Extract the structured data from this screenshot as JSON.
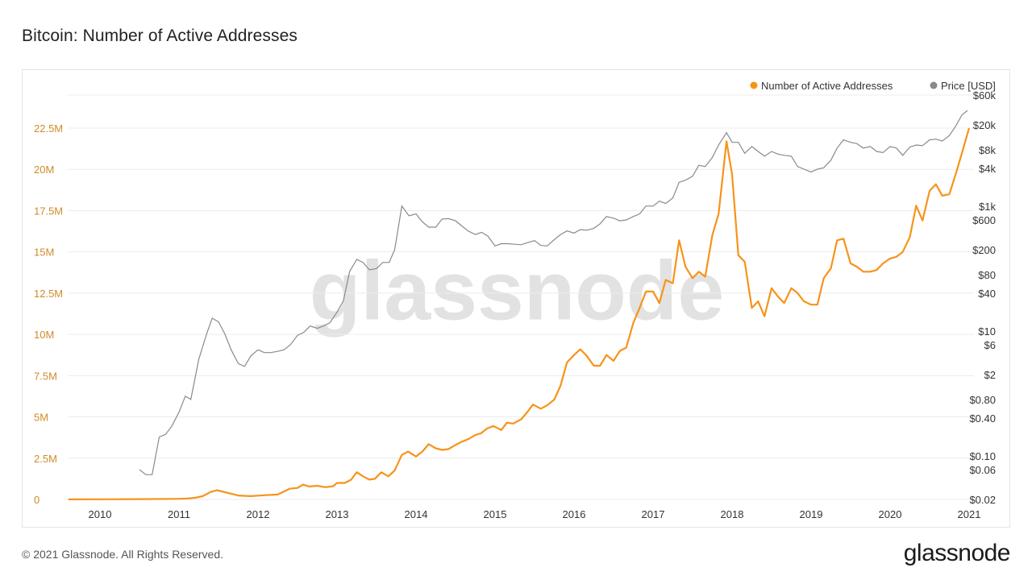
{
  "page": {
    "title": "Bitcoin: Number of Active Addresses",
    "footer": "© 2021 Glassnode. All Rights Reserved.",
    "logo": "glassnode",
    "watermark": "glassnode"
  },
  "colors": {
    "addresses": "#f7931a",
    "price": "#8a8a8a",
    "left_axis_text": "#d08b2a",
    "axis_text": "#333333",
    "grid": "#ececec",
    "watermark": "#e2e2e2"
  },
  "chart_data": {
    "type": "line",
    "title": "Bitcoin: Number of Active Addresses",
    "legend_position": "top-right",
    "x_ticks": [
      "2010",
      "2011",
      "2012",
      "2013",
      "2014",
      "2015",
      "2016",
      "2017",
      "2018",
      "2019",
      "2020",
      "2021"
    ],
    "xlim": [
      2009.6,
      2021.0
    ],
    "left_axis": {
      "ylim": [
        0,
        25000000
      ],
      "ticks": [
        {
          "value": 0,
          "label": "0"
        },
        {
          "value": 2500000,
          "label": "2.5M"
        },
        {
          "value": 5000000,
          "label": "5M"
        },
        {
          "value": 7500000,
          "label": "7.5M"
        },
        {
          "value": 10000000,
          "label": "10M"
        },
        {
          "value": 12500000,
          "label": "12.5M"
        },
        {
          "value": 15000000,
          "label": "15M"
        },
        {
          "value": 17500000,
          "label": "17.5M"
        },
        {
          "value": 20000000,
          "label": "20M"
        },
        {
          "value": 22500000,
          "label": "22.5M"
        }
      ]
    },
    "right_axis": {
      "scale": "log",
      "ylim": [
        0.02,
        60000
      ],
      "ticks": [
        {
          "value": 60000,
          "label": "$60k"
        },
        {
          "value": 20000,
          "label": "$20k"
        },
        {
          "value": 8000,
          "label": "$8k"
        },
        {
          "value": 4000,
          "label": "$4k"
        },
        {
          "value": 1000,
          "label": "$1k"
        },
        {
          "value": 600,
          "label": "$600"
        },
        {
          "value": 200,
          "label": "$200"
        },
        {
          "value": 80,
          "label": "$80"
        },
        {
          "value": 40,
          "label": "$40"
        },
        {
          "value": 10,
          "label": "$10"
        },
        {
          "value": 6,
          "label": "$6"
        },
        {
          "value": 2,
          "label": "$2"
        },
        {
          "value": 0.8,
          "label": "$0.80"
        },
        {
          "value": 0.4,
          "label": "$0.40"
        },
        {
          "value": 0.1,
          "label": "$0.10"
        },
        {
          "value": 0.06,
          "label": "$0.06"
        },
        {
          "value": 0.02,
          "label": "$0.02"
        }
      ]
    },
    "series": [
      {
        "name": "Number of Active Addresses",
        "axis": "left",
        "points": [
          [
            2009.6,
            5000
          ],
          [
            2010.0,
            10000
          ],
          [
            2010.5,
            20000
          ],
          [
            2010.9,
            35000
          ],
          [
            2011.0,
            40000
          ],
          [
            2011.1,
            60000
          ],
          [
            2011.2,
            100000
          ],
          [
            2011.3,
            200000
          ],
          [
            2011.4,
            450000
          ],
          [
            2011.48,
            560000
          ],
          [
            2011.6,
            420000
          ],
          [
            2011.75,
            240000
          ],
          [
            2011.9,
            200000
          ],
          [
            2012.0,
            230000
          ],
          [
            2012.1,
            260000
          ],
          [
            2012.25,
            300000
          ],
          [
            2012.4,
            650000
          ],
          [
            2012.5,
            700000
          ],
          [
            2012.57,
            900000
          ],
          [
            2012.65,
            780000
          ],
          [
            2012.75,
            830000
          ],
          [
            2012.85,
            740000
          ],
          [
            2012.95,
            800000
          ],
          [
            2013.0,
            1000000
          ],
          [
            2013.1,
            1000000
          ],
          [
            2013.18,
            1200000
          ],
          [
            2013.25,
            1650000
          ],
          [
            2013.33,
            1400000
          ],
          [
            2013.41,
            1200000
          ],
          [
            2013.48,
            1250000
          ],
          [
            2013.56,
            1650000
          ],
          [
            2013.65,
            1400000
          ],
          [
            2013.73,
            1750000
          ],
          [
            2013.82,
            2700000
          ],
          [
            2013.9,
            2900000
          ],
          [
            2014.0,
            2600000
          ],
          [
            2014.08,
            2900000
          ],
          [
            2014.16,
            3350000
          ],
          [
            2014.25,
            3100000
          ],
          [
            2014.33,
            3000000
          ],
          [
            2014.41,
            3050000
          ],
          [
            2014.5,
            3300000
          ],
          [
            2014.58,
            3500000
          ],
          [
            2014.66,
            3650000
          ],
          [
            2014.75,
            3900000
          ],
          [
            2014.82,
            4000000
          ],
          [
            2014.9,
            4300000
          ],
          [
            2014.98,
            4450000
          ],
          [
            2015.08,
            4200000
          ],
          [
            2015.15,
            4650000
          ],
          [
            2015.23,
            4600000
          ],
          [
            2015.33,
            4850000
          ],
          [
            2015.41,
            5300000
          ],
          [
            2015.48,
            5750000
          ],
          [
            2015.58,
            5500000
          ],
          [
            2015.66,
            5700000
          ],
          [
            2015.75,
            6050000
          ],
          [
            2015.83,
            6900000
          ],
          [
            2015.91,
            8300000
          ],
          [
            2016.0,
            8750000
          ],
          [
            2016.08,
            9100000
          ],
          [
            2016.16,
            8700000
          ],
          [
            2016.25,
            8100000
          ],
          [
            2016.33,
            8100000
          ],
          [
            2016.41,
            8750000
          ],
          [
            2016.5,
            8400000
          ],
          [
            2016.58,
            9000000
          ],
          [
            2016.66,
            9200000
          ],
          [
            2016.75,
            10700000
          ],
          [
            2016.83,
            11600000
          ],
          [
            2016.91,
            12600000
          ],
          [
            2017.0,
            12600000
          ],
          [
            2017.08,
            11900000
          ],
          [
            2017.16,
            13300000
          ],
          [
            2017.25,
            13100000
          ],
          [
            2017.33,
            15700000
          ],
          [
            2017.41,
            14100000
          ],
          [
            2017.5,
            13400000
          ],
          [
            2017.58,
            13800000
          ],
          [
            2017.66,
            13500000
          ],
          [
            2017.75,
            16000000
          ],
          [
            2017.83,
            17300000
          ],
          [
            2017.93,
            21700000
          ],
          [
            2018.0,
            19700000
          ],
          [
            2018.08,
            14800000
          ],
          [
            2018.16,
            14400000
          ],
          [
            2018.25,
            11600000
          ],
          [
            2018.33,
            12000000
          ],
          [
            2018.41,
            11100000
          ],
          [
            2018.5,
            12800000
          ],
          [
            2018.58,
            12300000
          ],
          [
            2018.66,
            11900000
          ],
          [
            2018.75,
            12800000
          ],
          [
            2018.83,
            12500000
          ],
          [
            2018.91,
            12000000
          ],
          [
            2019.0,
            11800000
          ],
          [
            2019.08,
            11800000
          ],
          [
            2019.16,
            13400000
          ],
          [
            2019.25,
            14000000
          ],
          [
            2019.33,
            15700000
          ],
          [
            2019.41,
            15800000
          ],
          [
            2019.5,
            14300000
          ],
          [
            2019.58,
            14100000
          ],
          [
            2019.66,
            13800000
          ],
          [
            2019.75,
            13800000
          ],
          [
            2019.83,
            13900000
          ],
          [
            2019.91,
            14300000
          ],
          [
            2020.0,
            14600000
          ],
          [
            2020.08,
            14700000
          ],
          [
            2020.16,
            15000000
          ],
          [
            2020.25,
            15900000
          ],
          [
            2020.33,
            17800000
          ],
          [
            2020.41,
            16900000
          ],
          [
            2020.5,
            18700000
          ],
          [
            2020.58,
            19100000
          ],
          [
            2020.66,
            18400000
          ],
          [
            2020.75,
            18500000
          ],
          [
            2020.83,
            19700000
          ],
          [
            2020.91,
            21000000
          ],
          [
            2021.0,
            22500000
          ]
        ]
      },
      {
        "name": "Price [USD]",
        "axis": "right",
        "points": [
          [
            2010.5,
            0.06
          ],
          [
            2010.58,
            0.05
          ],
          [
            2010.66,
            0.05
          ],
          [
            2010.75,
            0.2
          ],
          [
            2010.83,
            0.22
          ],
          [
            2010.91,
            0.3
          ],
          [
            2011.0,
            0.5
          ],
          [
            2011.08,
            0.9
          ],
          [
            2011.15,
            0.8
          ],
          [
            2011.25,
            3.5
          ],
          [
            2011.35,
            9
          ],
          [
            2011.42,
            16
          ],
          [
            2011.5,
            14
          ],
          [
            2011.58,
            9
          ],
          [
            2011.66,
            5
          ],
          [
            2011.75,
            3
          ],
          [
            2011.83,
            2.7
          ],
          [
            2011.91,
            4
          ],
          [
            2012.0,
            5
          ],
          [
            2012.08,
            4.5
          ],
          [
            2012.16,
            4.5
          ],
          [
            2012.25,
            4.7
          ],
          [
            2012.33,
            5
          ],
          [
            2012.41,
            6
          ],
          [
            2012.5,
            8.5
          ],
          [
            2012.58,
            9.5
          ],
          [
            2012.66,
            12
          ],
          [
            2012.75,
            11
          ],
          [
            2012.83,
            12
          ],
          [
            2012.91,
            13.5
          ],
          [
            2013.0,
            20
          ],
          [
            2013.08,
            30
          ],
          [
            2013.16,
            90
          ],
          [
            2013.25,
            140
          ],
          [
            2013.33,
            125
          ],
          [
            2013.41,
            95
          ],
          [
            2013.5,
            100
          ],
          [
            2013.58,
            125
          ],
          [
            2013.66,
            125
          ],
          [
            2013.73,
            200
          ],
          [
            2013.82,
            1000
          ],
          [
            2013.91,
            700
          ],
          [
            2014.0,
            750
          ],
          [
            2014.08,
            560
          ],
          [
            2014.16,
            460
          ],
          [
            2014.25,
            460
          ],
          [
            2014.33,
            620
          ],
          [
            2014.41,
            630
          ],
          [
            2014.5,
            580
          ],
          [
            2014.58,
            480
          ],
          [
            2014.66,
            400
          ],
          [
            2014.75,
            350
          ],
          [
            2014.83,
            380
          ],
          [
            2014.91,
            330
          ],
          [
            2015.0,
            230
          ],
          [
            2015.08,
            250
          ],
          [
            2015.16,
            250
          ],
          [
            2015.25,
            245
          ],
          [
            2015.33,
            240
          ],
          [
            2015.41,
            260
          ],
          [
            2015.5,
            280
          ],
          [
            2015.58,
            235
          ],
          [
            2015.66,
            230
          ],
          [
            2015.75,
            290
          ],
          [
            2015.83,
            350
          ],
          [
            2015.91,
            400
          ],
          [
            2016.0,
            370
          ],
          [
            2016.08,
            420
          ],
          [
            2016.16,
            410
          ],
          [
            2016.25,
            440
          ],
          [
            2016.33,
            520
          ],
          [
            2016.41,
            680
          ],
          [
            2016.5,
            640
          ],
          [
            2016.58,
            580
          ],
          [
            2016.66,
            600
          ],
          [
            2016.75,
            680
          ],
          [
            2016.83,
            750
          ],
          [
            2016.91,
            1000
          ],
          [
            2017.0,
            1000
          ],
          [
            2017.08,
            1200
          ],
          [
            2017.16,
            1100
          ],
          [
            2017.25,
            1350
          ],
          [
            2017.33,
            2400
          ],
          [
            2017.41,
            2600
          ],
          [
            2017.5,
            3000
          ],
          [
            2017.58,
            4500
          ],
          [
            2017.66,
            4300
          ],
          [
            2017.75,
            6000
          ],
          [
            2017.83,
            9500
          ],
          [
            2017.93,
            15000
          ],
          [
            2018.0,
            10500
          ],
          [
            2018.08,
            10500
          ],
          [
            2018.16,
            7000
          ],
          [
            2018.25,
            9000
          ],
          [
            2018.33,
            7500
          ],
          [
            2018.41,
            6300
          ],
          [
            2018.5,
            7500
          ],
          [
            2018.58,
            6800
          ],
          [
            2018.66,
            6500
          ],
          [
            2018.75,
            6300
          ],
          [
            2018.83,
            4300
          ],
          [
            2018.91,
            3900
          ],
          [
            2019.0,
            3500
          ],
          [
            2019.08,
            3900
          ],
          [
            2019.16,
            4100
          ],
          [
            2019.25,
            5400
          ],
          [
            2019.33,
            8500
          ],
          [
            2019.41,
            11500
          ],
          [
            2019.5,
            10500
          ],
          [
            2019.58,
            10000
          ],
          [
            2019.66,
            8500
          ],
          [
            2019.75,
            9000
          ],
          [
            2019.83,
            7500
          ],
          [
            2019.91,
            7200
          ],
          [
            2020.0,
            9000
          ],
          [
            2020.08,
            8500
          ],
          [
            2020.16,
            6500
          ],
          [
            2020.25,
            8800
          ],
          [
            2020.33,
            9500
          ],
          [
            2020.41,
            9300
          ],
          [
            2020.5,
            11500
          ],
          [
            2020.58,
            11800
          ],
          [
            2020.66,
            11000
          ],
          [
            2020.75,
            13500
          ],
          [
            2020.83,
            19000
          ],
          [
            2020.91,
            29000
          ],
          [
            2020.98,
            34000
          ]
        ]
      }
    ]
  }
}
